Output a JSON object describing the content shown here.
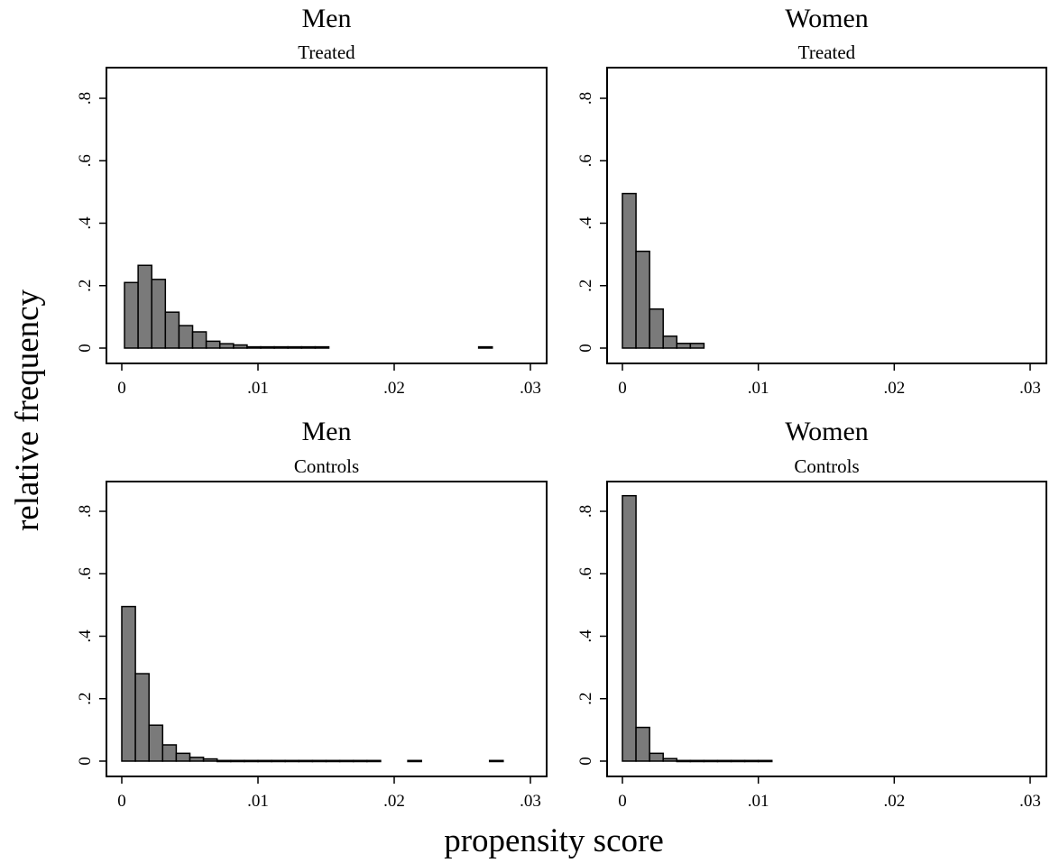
{
  "figure": {
    "ylabel": "relative frequency",
    "xlabel": "propensity score"
  },
  "chart_data": [
    {
      "type": "bar",
      "title": "Men",
      "subtitle": "Treated",
      "bin_width": 0.001,
      "bins_start": [
        0.0002,
        0.0012,
        0.0022,
        0.0032,
        0.0042,
        0.0052,
        0.0062,
        0.0072,
        0.0082,
        0.0092,
        0.0102,
        0.0112,
        0.0122,
        0.0132,
        0.0142,
        0.0262
      ],
      "values": [
        0.21,
        0.265,
        0.22,
        0.115,
        0.072,
        0.052,
        0.022,
        0.014,
        0.01,
        0.004,
        0.004,
        0.004,
        0.004,
        0.004,
        0.004,
        0.004
      ],
      "xlim": [
        0,
        0.03
      ],
      "ylim": [
        0,
        0.8
      ],
      "xticks": [
        "0",
        ".01",
        ".02",
        ".03"
      ],
      "xtick_values": [
        0,
        0.01,
        0.02,
        0.03
      ],
      "yticks": [
        "0",
        ".2",
        ".4",
        ".6",
        ".8"
      ],
      "ytick_values": [
        0,
        0.2,
        0.4,
        0.6,
        0.8
      ]
    },
    {
      "type": "bar",
      "title": "Women",
      "subtitle": "Treated",
      "bin_width": 0.001,
      "bins_start": [
        0.0,
        0.001,
        0.002,
        0.003,
        0.004,
        0.005
      ],
      "values": [
        0.495,
        0.31,
        0.125,
        0.038,
        0.015,
        0.015
      ],
      "xlim": [
        0,
        0.03
      ],
      "ylim": [
        0,
        0.8
      ],
      "xticks": [
        "0",
        ".01",
        ".02",
        ".03"
      ],
      "xtick_values": [
        0,
        0.01,
        0.02,
        0.03
      ],
      "yticks": [
        "0",
        ".2",
        ".4",
        ".6",
        ".8"
      ],
      "ytick_values": [
        0,
        0.2,
        0.4,
        0.6,
        0.8
      ]
    },
    {
      "type": "bar",
      "title": "Men",
      "subtitle": "Controls",
      "bin_width": 0.001,
      "bins_start": [
        0.0,
        0.001,
        0.002,
        0.003,
        0.004,
        0.005,
        0.006,
        0.007,
        0.008,
        0.009,
        0.01,
        0.011,
        0.012,
        0.013,
        0.014,
        0.015,
        0.016,
        0.017,
        0.018,
        0.021,
        0.027
      ],
      "values": [
        0.495,
        0.28,
        0.115,
        0.052,
        0.025,
        0.012,
        0.007,
        0.002,
        0.002,
        0.002,
        0.002,
        0.002,
        0.002,
        0.002,
        0.002,
        0.002,
        0.002,
        0.002,
        0.002,
        0.002,
        0.002
      ],
      "xlim": [
        0,
        0.03
      ],
      "ylim": [
        0,
        0.8
      ],
      "xticks": [
        "0",
        ".01",
        ".02",
        ".03"
      ],
      "xtick_values": [
        0,
        0.01,
        0.02,
        0.03
      ],
      "yticks": [
        "0",
        ".2",
        ".4",
        ".6",
        ".8"
      ],
      "ytick_values": [
        0,
        0.2,
        0.4,
        0.6,
        0.8
      ]
    },
    {
      "type": "bar",
      "title": "Women",
      "subtitle": "Controls",
      "bin_width": 0.001,
      "bins_start": [
        0.0,
        0.001,
        0.002,
        0.003,
        0.004,
        0.005,
        0.006,
        0.007,
        0.008,
        0.009,
        0.01
      ],
      "values": [
        0.85,
        0.108,
        0.025,
        0.008,
        0.002,
        0.002,
        0.002,
        0.002,
        0.002,
        0.002,
        0.002
      ],
      "xlim": [
        0,
        0.03
      ],
      "ylim": [
        0,
        0.8
      ],
      "xticks": [
        "0",
        ".01",
        ".02",
        ".03"
      ],
      "xtick_values": [
        0,
        0.01,
        0.02,
        0.03
      ],
      "yticks": [
        "0",
        ".2",
        ".4",
        ".6",
        ".8"
      ],
      "ytick_values": [
        0,
        0.2,
        0.4,
        0.6,
        0.8
      ]
    }
  ]
}
